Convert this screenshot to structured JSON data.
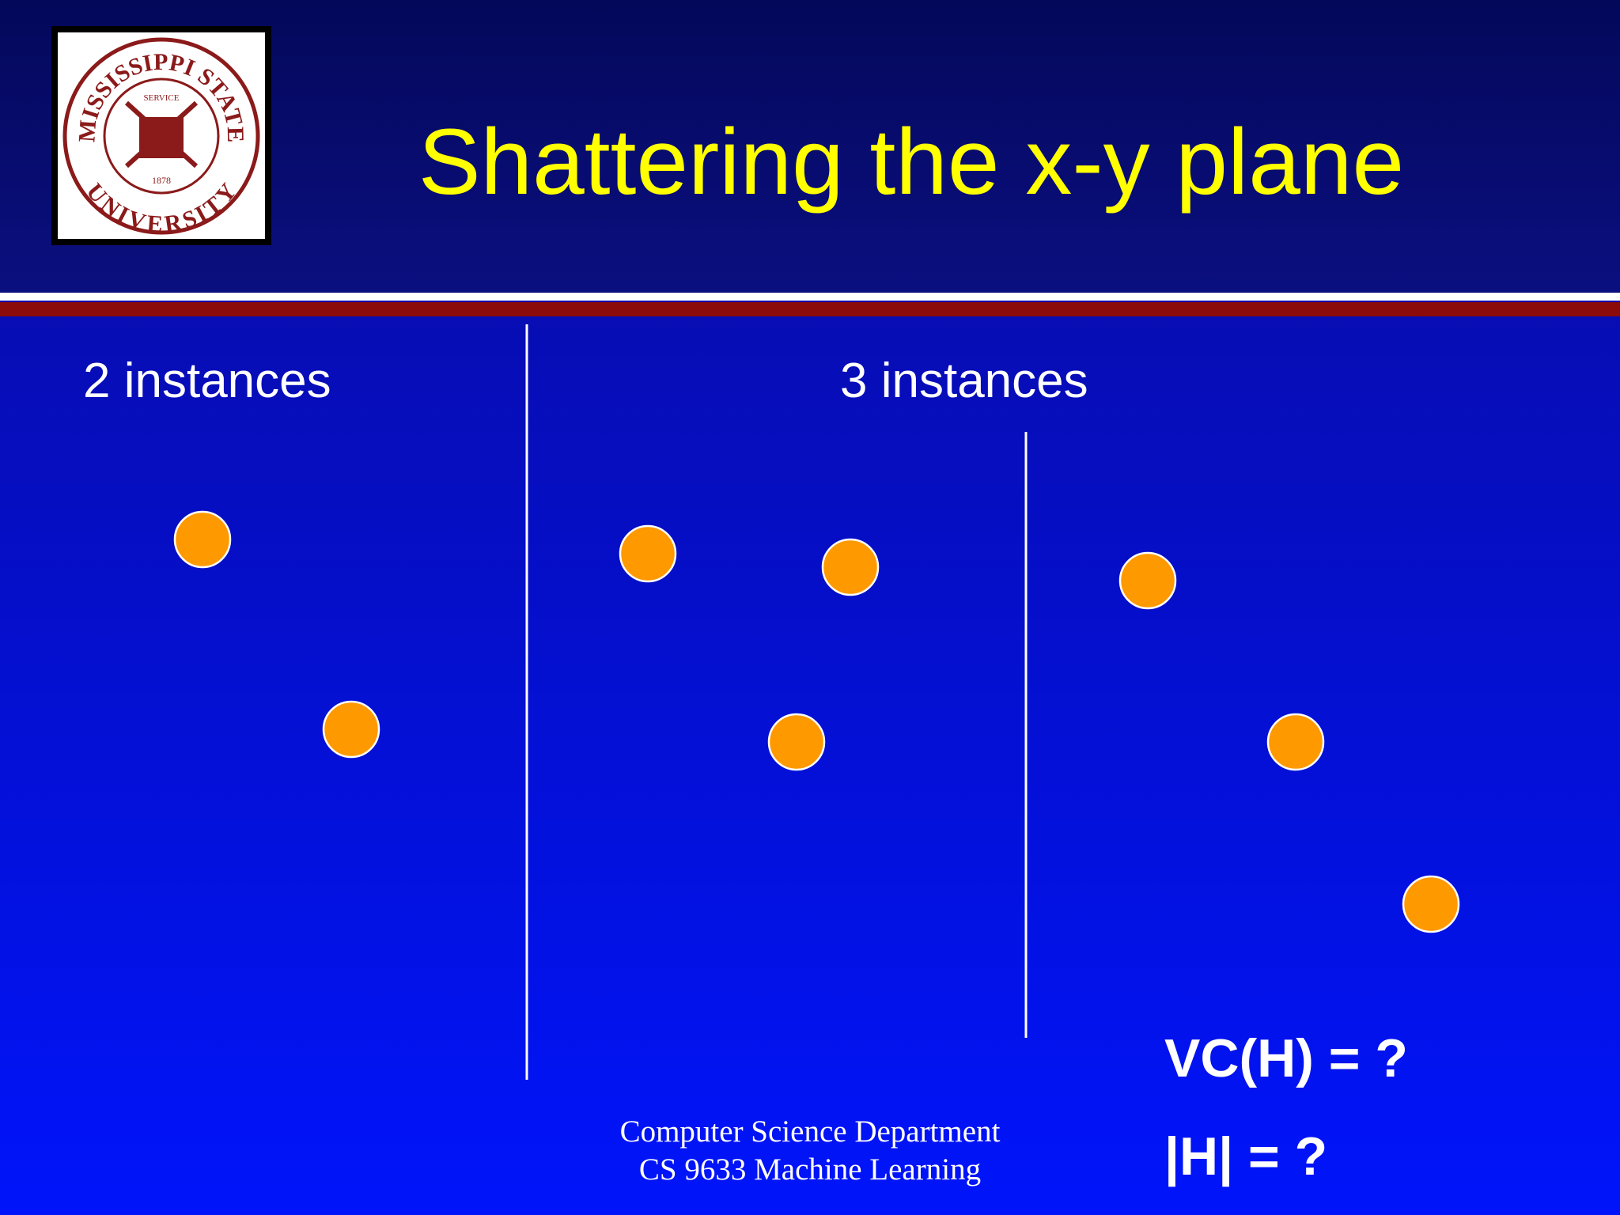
{
  "header": {
    "title": "Shattering the x-y plane",
    "logo": {
      "top_text": "MISSISSIPPI STATE",
      "bottom_text": "UNIVERSITY",
      "inner_text": "SERVICE",
      "year": "1878"
    }
  },
  "panels": [
    {
      "label": "2 instances"
    },
    {
      "label": "3 instances"
    }
  ],
  "questions": [
    "VC(H) = ?",
    "|H| = ?"
  ],
  "footer": {
    "lines": [
      "Computer Science Department",
      "CS 9633 Machine Learning"
    ]
  }
}
